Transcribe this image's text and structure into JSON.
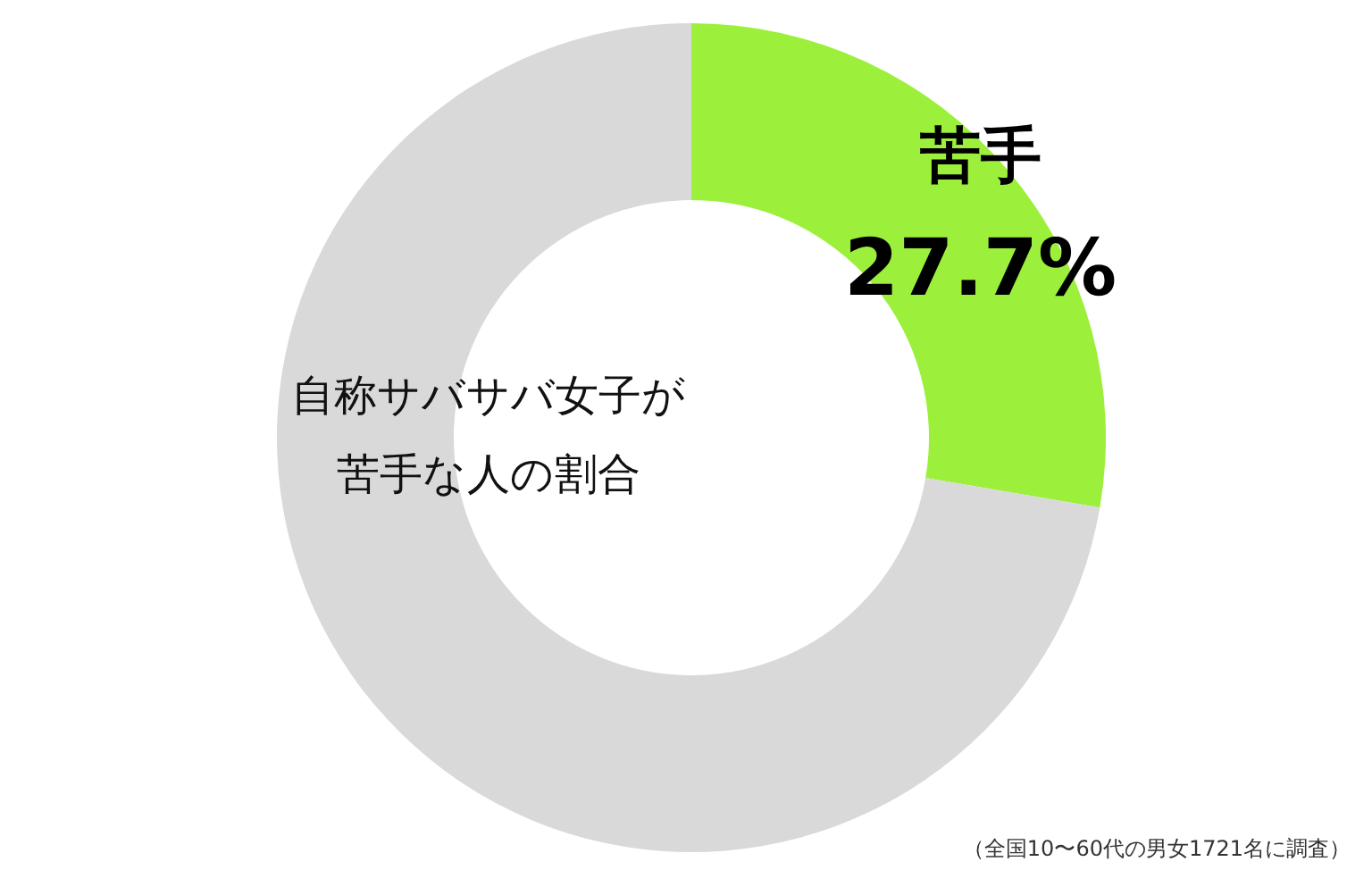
{
  "chart_data": {
    "type": "donut",
    "title": "自称サバサバ女子が苦手な人の割合",
    "categories": [
      "苦手",
      null
    ],
    "values": [
      27.7,
      72.3
    ],
    "colors": [
      "#9cf03c",
      "#d9d9d9"
    ],
    "value_labels": [
      "27.7%",
      null
    ],
    "legend": false,
    "annotations": [
      "（全国10〜60代の男女1721名に調査）"
    ]
  }
}
